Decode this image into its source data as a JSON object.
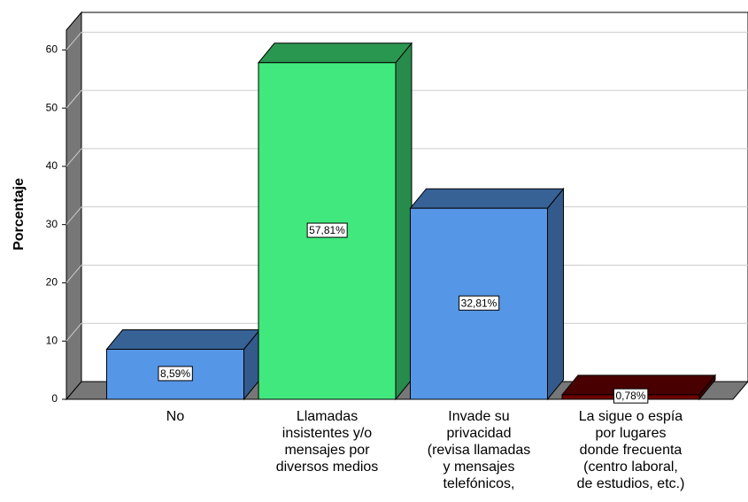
{
  "chart_data": {
    "type": "bar3d",
    "ylabel": "Porcentaje",
    "categories": [
      "No",
      "Llamadas\ninsistentes y/o\nmensajes por\ndiversos medios",
      "Invade su\nprivacidad\n(revisa llamadas\ny mensajes\ntelefónicos,",
      "La sigue o espía\npor lugares\ndonde frecuenta\n(centro laboral,\nde estudios, etc.)"
    ],
    "values": [
      8.59,
      57.81,
      32.81,
      0.78
    ],
    "value_labels": [
      "8,59%",
      "57,81%",
      "32,81%",
      "0,78%"
    ],
    "colors": [
      "#5596e6",
      "#41e87d",
      "#5596e6",
      "#6e0000"
    ],
    "ylim": [
      0,
      63.4
    ],
    "yticks": [
      0,
      10,
      20,
      30,
      40,
      50,
      60
    ],
    "grid": true
  }
}
